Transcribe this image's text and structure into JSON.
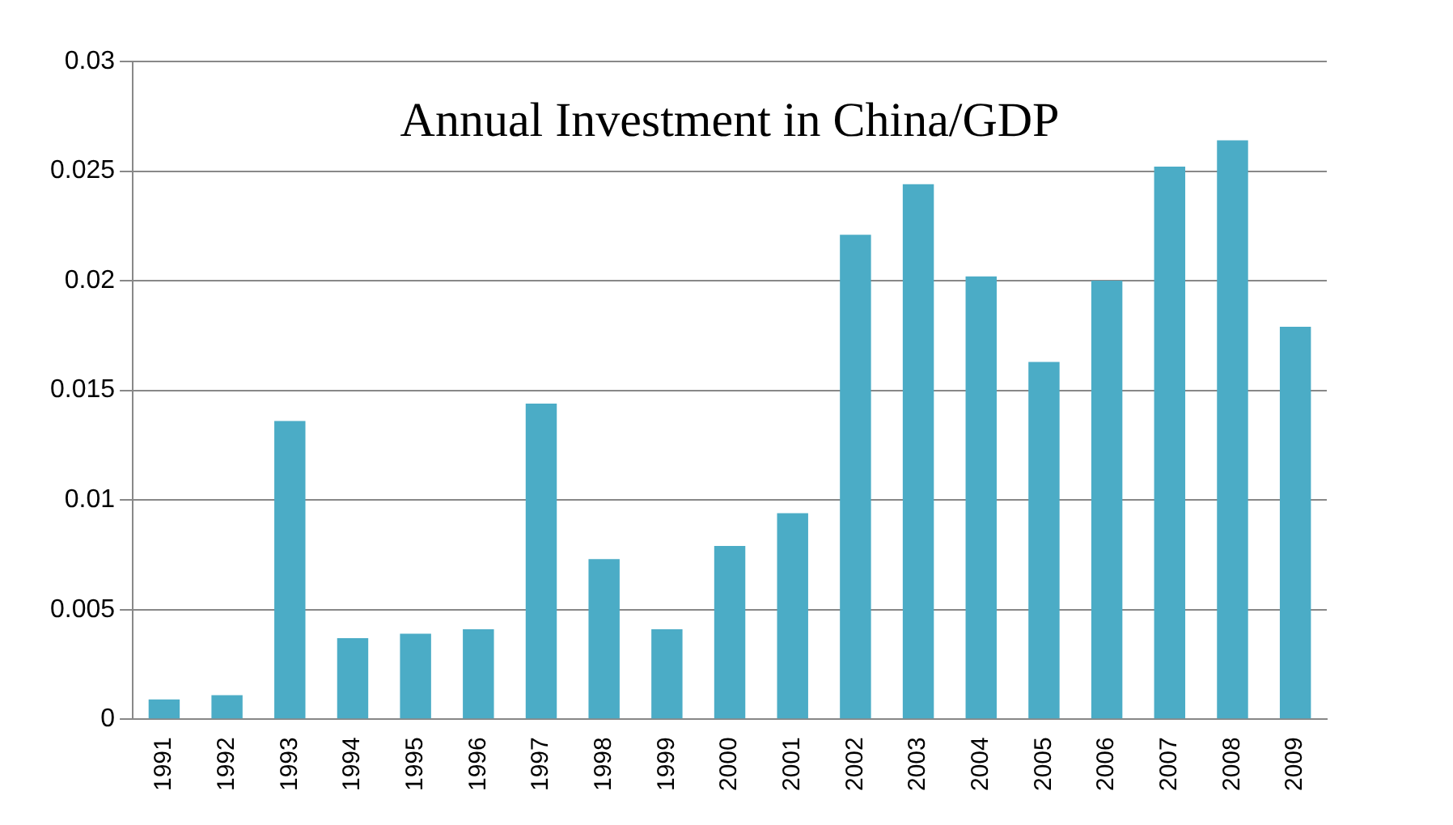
{
  "chart_data": {
    "type": "bar",
    "title": "Annual Investment in China/GDP",
    "categories": [
      "1991",
      "1992",
      "1993",
      "1994",
      "1995",
      "1996",
      "1997",
      "1998",
      "1999",
      "2000",
      "2001",
      "2002",
      "2003",
      "2004",
      "2005",
      "2006",
      "2007",
      "2008",
      "2009"
    ],
    "values": [
      0.0009,
      0.0011,
      0.0136,
      0.0037,
      0.0039,
      0.0041,
      0.0144,
      0.0073,
      0.0041,
      0.0079,
      0.0094,
      0.0221,
      0.0244,
      0.0202,
      0.0163,
      0.02,
      0.0252,
      0.0264,
      0.0179
    ],
    "color": "#4bacc6",
    "ylim": [
      0,
      0.03
    ],
    "yticks": [
      0,
      0.005,
      0.01,
      0.015,
      0.02,
      0.025,
      0.03
    ],
    "grid": "y"
  }
}
